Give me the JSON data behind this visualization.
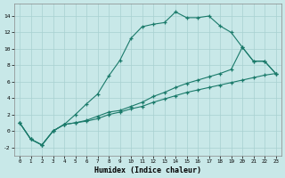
{
  "xlabel": "Humidex (Indice chaleur)",
  "background_color": "#c8e8e8",
  "line_color": "#1a7a6a",
  "xlim": [
    -0.5,
    23.5
  ],
  "ylim": [
    -3,
    15.5
  ],
  "yticks": [
    -2,
    0,
    2,
    4,
    6,
    8,
    10,
    12,
    14
  ],
  "xticks": [
    0,
    1,
    2,
    3,
    4,
    5,
    6,
    7,
    8,
    9,
    10,
    11,
    12,
    13,
    14,
    15,
    16,
    17,
    18,
    19,
    20,
    21,
    22,
    23
  ],
  "series": [
    {
      "x": [
        0,
        1,
        2,
        3,
        4,
        5,
        6,
        7,
        8,
        9,
        10,
        11,
        12,
        13,
        14,
        15,
        16,
        17,
        18,
        19,
        20,
        21,
        22,
        23
      ],
      "y": [
        1,
        -1,
        -1.7,
        0.0,
        0.8,
        2.0,
        3.3,
        4.5,
        6.7,
        8.6,
        11.3,
        12.7,
        13.0,
        13.2,
        14.5,
        13.8,
        13.8,
        14.0,
        12.8,
        12.0,
        10.2,
        8.5,
        8.5,
        7.0
      ]
    },
    {
      "x": [
        0,
        1,
        2,
        3,
        4,
        5,
        6,
        7,
        8,
        9,
        10,
        11,
        12,
        13,
        14,
        15,
        16,
        17,
        18,
        19,
        20,
        21,
        22,
        23
      ],
      "y": [
        1,
        -1,
        -1.7,
        0.0,
        0.8,
        1.0,
        1.3,
        1.8,
        2.3,
        2.5,
        3.0,
        3.5,
        4.2,
        4.7,
        5.3,
        5.8,
        6.2,
        6.6,
        7.0,
        7.5,
        10.2,
        8.5,
        8.5,
        7.0
      ]
    },
    {
      "x": [
        0,
        1,
        2,
        3,
        4,
        5,
        6,
        7,
        8,
        9,
        10,
        11,
        12,
        13,
        14,
        15,
        16,
        17,
        18,
        19,
        20,
        21,
        22,
        23
      ],
      "y": [
        1,
        -1,
        -1.7,
        0.0,
        0.8,
        1.0,
        1.2,
        1.5,
        2.0,
        2.3,
        2.7,
        3.0,
        3.5,
        3.9,
        4.3,
        4.7,
        5.0,
        5.3,
        5.6,
        5.9,
        6.2,
        6.5,
        6.8,
        7.0
      ]
    }
  ]
}
